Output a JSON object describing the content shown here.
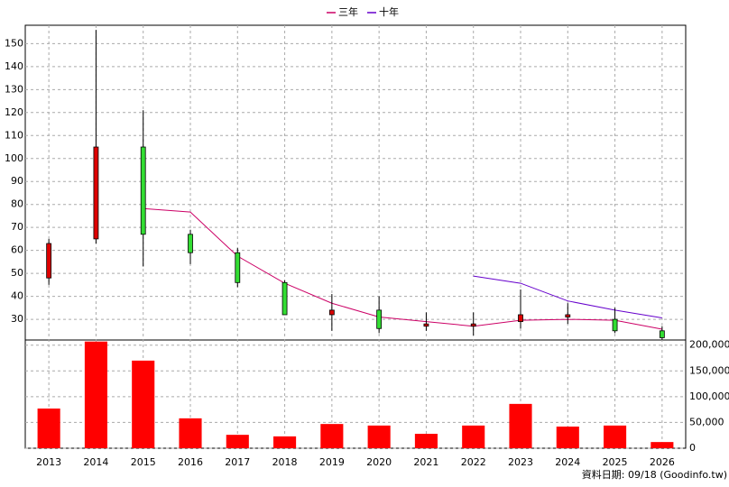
{
  "chart_data": {
    "type": "candlestick",
    "categories": [
      "2013",
      "2014",
      "2015",
      "2016",
      "2017",
      "2018",
      "2019",
      "2020",
      "2021",
      "2022",
      "2023",
      "2024",
      "2025",
      "2026"
    ],
    "open": [
      48,
      65,
      105,
      67,
      59,
      46,
      32,
      34,
      27,
      27,
      29,
      31,
      30,
      25
    ],
    "high": [
      65,
      156,
      121,
      69,
      61,
      47,
      41,
      40,
      33,
      33,
      43,
      37,
      35,
      27
    ],
    "low": [
      45,
      63,
      53,
      54,
      44,
      32,
      25,
      24,
      25,
      23,
      26,
      28,
      24,
      21
    ],
    "close": [
      63,
      105,
      67,
      59,
      46,
      32,
      34,
      26,
      28,
      28,
      32,
      32,
      25,
      22
    ],
    "up_color": "#dd0000",
    "down_color": "#33dd33",
    "ylim": [
      21,
      158
    ],
    "yticks": [
      30,
      40,
      50,
      60,
      70,
      80,
      90,
      100,
      110,
      120,
      130,
      140,
      150
    ],
    "grid": true,
    "lines": [
      {
        "name": "三年",
        "color": "#cc0066",
        "values": [
          null,
          null,
          78.2,
          76.7,
          57.5,
          45.7,
          37,
          31,
          29,
          27,
          29.6,
          30,
          29.6,
          25.7
        ]
      },
      {
        "name": "十年",
        "color": "#6600cc",
        "values": [
          null,
          null,
          null,
          null,
          null,
          null,
          null,
          null,
          null,
          48.8,
          45.7,
          38,
          34,
          30.6
        ]
      }
    ],
    "volume": {
      "values": [
        77000,
        207000,
        170000,
        58000,
        26000,
        23000,
        47000,
        44000,
        28000,
        44000,
        86000,
        42000,
        44000,
        12000
      ],
      "color": "#ff0000",
      "ylim": [
        0,
        210000
      ],
      "yticks": [
        0,
        {
          "value": 50000,
          "label": "50,000"
        },
        {
          "value": 100000,
          "label": "100,000"
        },
        {
          "value": 150000,
          "label": "150,000"
        },
        {
          "value": 200000,
          "label": "200,000"
        }
      ]
    },
    "footer": "資料日期: 09/18  (Goodinfo.tw)"
  }
}
